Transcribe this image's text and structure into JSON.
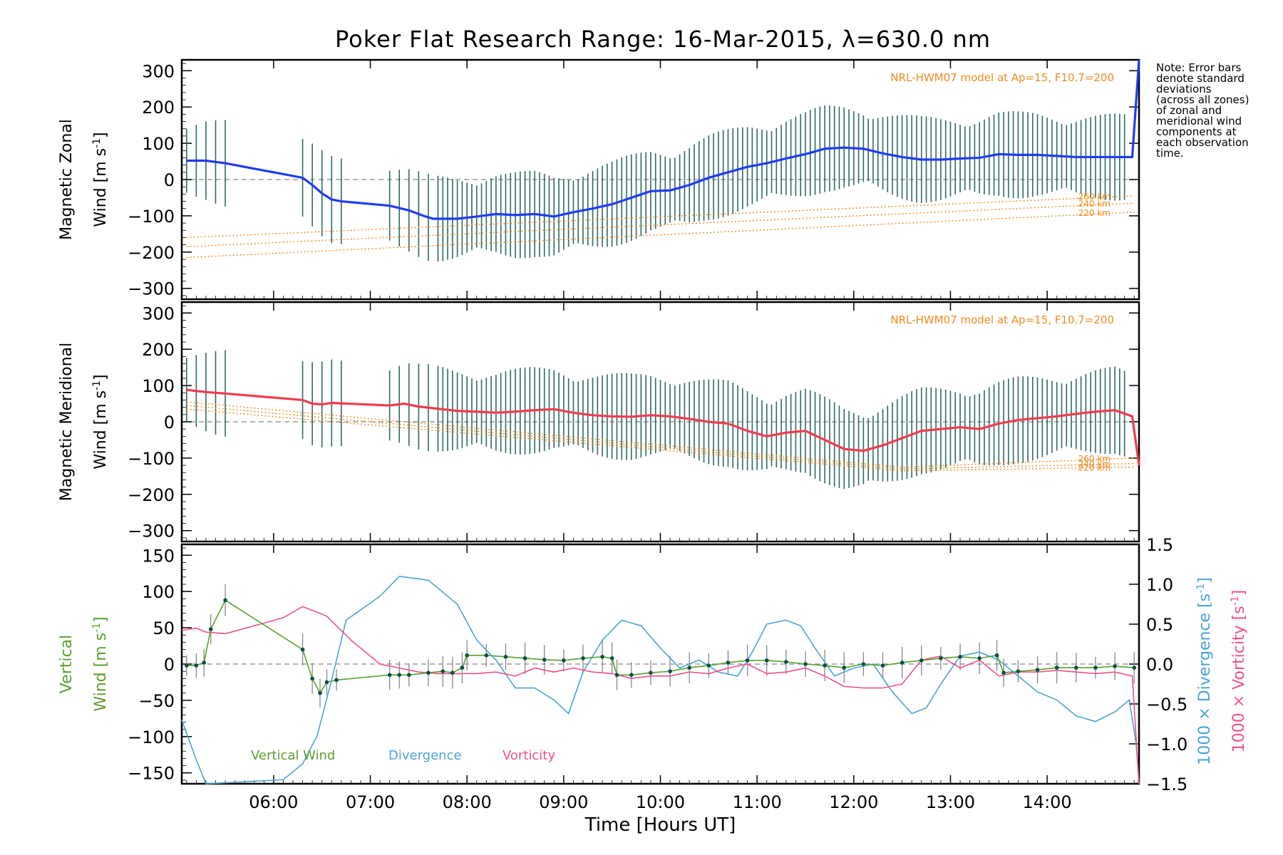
{
  "title": "Poker Flat Research Range: 16-Mar-2015, λ=630.0 nm",
  "note": "Note: Error bars\ndenote standard\ndeviations\n(across all zones)\nof zonal and\nmeridional wind\ncomponents at\neach observation\ntime.",
  "colors": {
    "zonal": "#1f3cf0",
    "meridional": "#f03c50",
    "model": "#f08a1e",
    "vertical": "#5aa02c",
    "divergence": "#4aa3d8",
    "vorticity": "#f0508c",
    "errorbar_dark": "#0b4f4a",
    "errorbar_gray": "#888888"
  },
  "chart_data": [
    {
      "type": "line",
      "panel": "zonal",
      "ylabel": "Magnetic Zonal Wind [m s⁻¹]",
      "ylabel_lines": [
        "Magnetic Zonal",
        "Wind [m s",
        "-1",
        "]"
      ],
      "ylim": [
        -330,
        330
      ],
      "yticks": [
        300,
        200,
        100,
        0,
        -100,
        -200,
        -300
      ],
      "xlim": [
        5.05,
        14.95
      ],
      "model_label": "NRL-HWM07 model at Ap=15, F10.7=200",
      "model_series": [
        {
          "name": "260 km",
          "x": [
            5.1,
            14.9
          ],
          "y": [
            -160,
            -45
          ]
        },
        {
          "name": "240 km",
          "x": [
            5.1,
            14.9
          ],
          "y": [
            -185,
            -65
          ]
        },
        {
          "name": "220 km",
          "x": [
            5.1,
            14.9
          ],
          "y": [
            -215,
            -90
          ]
        }
      ],
      "series": {
        "name": "Zonal wind",
        "x": [
          5.1,
          5.3,
          5.5,
          6.3,
          6.4,
          6.5,
          6.6,
          6.7,
          7.2,
          7.4,
          7.55,
          7.65,
          7.9,
          8.1,
          8.3,
          8.5,
          8.7,
          8.9,
          9.1,
          9.3,
          9.5,
          9.7,
          9.9,
          10.1,
          10.3,
          10.5,
          10.7,
          10.9,
          11.1,
          11.3,
          11.5,
          11.7,
          11.9,
          12.1,
          12.3,
          12.5,
          12.7,
          12.9,
          13.1,
          13.3,
          13.5,
          13.7,
          13.9,
          14.1,
          14.3,
          14.5,
          14.7,
          14.88,
          14.95
        ],
        "y": [
          52,
          52,
          45,
          5,
          -15,
          -38,
          -55,
          -60,
          -72,
          -85,
          -100,
          -108,
          -108,
          -102,
          -95,
          -98,
          -95,
          -102,
          -90,
          -80,
          -68,
          -50,
          -32,
          -30,
          -15,
          5,
          20,
          35,
          45,
          58,
          70,
          85,
          88,
          85,
          72,
          62,
          55,
          55,
          58,
          60,
          70,
          68,
          68,
          65,
          62,
          62,
          62,
          62,
          330
        ]
      }
    },
    {
      "type": "line",
      "panel": "meridional",
      "ylabel": "Magnetic Meridional Wind [m s⁻¹]",
      "ylabel_lines": [
        "Magnetic Meridional",
        "Wind [m s",
        "-1",
        "]"
      ],
      "ylim": [
        -330,
        330
      ],
      "yticks": [
        300,
        200,
        100,
        0,
        -100,
        -200,
        -300
      ],
      "xlim": [
        5.05,
        14.95
      ],
      "model_label": "NRL-HWM07 model at Ap=15, F10.7=200",
      "model_series": [
        {
          "name": "260 km",
          "x": [
            5.1,
            12.5,
            14.9
          ],
          "y": [
            55,
            -125,
            -100
          ]
        },
        {
          "name": "240 km",
          "x": [
            5.1,
            12.5,
            14.9
          ],
          "y": [
            45,
            -130,
            -115
          ]
        },
        {
          "name": "220 km",
          "x": [
            5.1,
            12.5,
            14.9
          ],
          "y": [
            35,
            -135,
            -125
          ]
        }
      ],
      "series": {
        "name": "Meridional wind",
        "x": [
          5.1,
          5.3,
          5.5,
          6.3,
          6.4,
          6.5,
          6.6,
          7.2,
          7.35,
          7.5,
          7.9,
          8.1,
          8.3,
          8.5,
          8.7,
          8.9,
          9.1,
          9.3,
          9.5,
          9.7,
          9.9,
          10.1,
          10.3,
          10.5,
          10.7,
          10.9,
          11.1,
          11.3,
          11.5,
          11.7,
          11.9,
          12.1,
          12.3,
          12.5,
          12.7,
          12.9,
          13.1,
          13.3,
          13.5,
          13.7,
          13.9,
          14.1,
          14.3,
          14.5,
          14.7,
          14.88,
          14.95
        ],
        "y": [
          88,
          82,
          78,
          60,
          50,
          48,
          52,
          45,
          50,
          42,
          30,
          28,
          25,
          28,
          32,
          35,
          25,
          18,
          15,
          14,
          18,
          15,
          8,
          0,
          -5,
          -25,
          -40,
          -30,
          -25,
          -50,
          -75,
          -80,
          -65,
          -45,
          -25,
          -20,
          -15,
          -20,
          -5,
          5,
          10,
          15,
          22,
          28,
          32,
          15,
          -120
        ]
      }
    },
    {
      "type": "line",
      "panel": "vertical",
      "ylabel": "Vertical Wind [m s⁻¹]",
      "ylabel_lines": [
        "Vertical",
        "Wind [m s",
        "-1",
        "]"
      ],
      "ylim": [
        -165,
        165
      ],
      "yticks": [
        150,
        100,
        50,
        0,
        -50,
        -100,
        -150
      ],
      "y2_label": "1000 × Divergence [s⁻¹]",
      "y2_label_lines": [
        "1000 × Divergence [s",
        "-1",
        "]"
      ],
      "y3_label": "1000 × Vorticity [s⁻¹]",
      "y3_label_lines": [
        "1000 × Vorticity [s",
        "-1",
        "]"
      ],
      "y2lim": [
        -1.5,
        1.5
      ],
      "y2ticks": [
        "1.5",
        "1.0",
        "0.5",
        "0.0",
        "−0.5",
        "−1.0",
        "−1.5"
      ],
      "y2tick_values": [
        1.5,
        1.0,
        0.5,
        0.0,
        -0.5,
        -1.0,
        -1.5
      ],
      "xlim": [
        5.05,
        14.95
      ],
      "xticks": [
        "06:00",
        "07:00",
        "08:00",
        "09:00",
        "10:00",
        "11:00",
        "12:00",
        "13:00",
        "14:00"
      ],
      "xtick_values": [
        6,
        7,
        8,
        9,
        10,
        11,
        12,
        13,
        14
      ],
      "xlabel": "Time [Hours UT]",
      "legend": [
        "Vertical Wind",
        "Divergence",
        "Vorticity"
      ],
      "series": [
        {
          "name": "Vertical Wind",
          "x": [
            5.1,
            5.2,
            5.28,
            5.35,
            5.5,
            6.3,
            6.4,
            6.48,
            6.55,
            6.65,
            7.2,
            7.3,
            7.4,
            7.6,
            7.75,
            7.85,
            7.95,
            8.0,
            8.2,
            8.4,
            8.6,
            8.8,
            9.0,
            9.2,
            9.4,
            9.5,
            9.55,
            9.7,
            9.9,
            10.1,
            10.3,
            10.5,
            10.7,
            10.9,
            11.1,
            11.3,
            11.5,
            11.7,
            11.9,
            12.1,
            12.3,
            12.5,
            12.7,
            12.9,
            13.1,
            13.3,
            13.48,
            13.55,
            13.7,
            13.9,
            14.1,
            14.3,
            14.5,
            14.7,
            14.9
          ],
          "y": [
            -2,
            -2,
            2,
            48,
            88,
            20,
            -20,
            -40,
            -25,
            -22,
            -15,
            -15,
            -15,
            -12,
            -10,
            -12,
            -5,
            12,
            12,
            10,
            8,
            6,
            5,
            8,
            10,
            8,
            -15,
            -15,
            -12,
            -10,
            -5,
            -2,
            2,
            5,
            5,
            3,
            0,
            -2,
            -5,
            0,
            -2,
            2,
            5,
            8,
            10,
            8,
            12,
            -12,
            -10,
            -8,
            -5,
            -5,
            -5,
            -3,
            -5
          ]
        },
        {
          "name": "Divergence",
          "x": [
            5.05,
            5.2,
            5.3,
            6.1,
            6.3,
            6.45,
            6.6,
            6.75,
            7.1,
            7.3,
            7.6,
            7.9,
            8.1,
            8.3,
            8.5,
            8.7,
            8.9,
            9.05,
            9.2,
            9.4,
            9.6,
            9.8,
            10.0,
            10.2,
            10.4,
            10.6,
            10.8,
            10.95,
            11.1,
            11.3,
            11.45,
            11.6,
            11.8,
            12.0,
            12.2,
            12.4,
            12.6,
            12.75,
            12.9,
            13.1,
            13.3,
            13.5,
            13.7,
            13.9,
            14.1,
            14.3,
            14.5,
            14.7,
            14.85,
            14.92,
            14.95
          ],
          "y": [
            -0.7,
            -1.2,
            -1.5,
            -1.45,
            -1.25,
            -0.9,
            -0.2,
            0.55,
            0.85,
            1.1,
            1.05,
            0.75,
            0.3,
            0.05,
            -0.3,
            -0.3,
            -0.45,
            -0.62,
            -0.1,
            0.3,
            0.55,
            0.48,
            0.2,
            -0.05,
            0.05,
            -0.1,
            -0.15,
            0.15,
            0.5,
            0.55,
            0.48,
            0.2,
            -0.15,
            -0.05,
            0.0,
            -0.35,
            -0.62,
            -0.55,
            -0.25,
            0.1,
            0.15,
            0.05,
            -0.15,
            -0.35,
            -0.45,
            -0.65,
            -0.72,
            -0.6,
            -0.45,
            -1.0,
            -1.5
          ]
        },
        {
          "name": "Vorticity",
          "x": [
            5.05,
            5.2,
            5.3,
            5.5,
            5.8,
            6.1,
            6.3,
            6.45,
            6.55,
            6.8,
            7.1,
            7.3,
            7.5,
            7.7,
            7.9,
            8.1,
            8.3,
            8.5,
            8.7,
            8.9,
            9.1,
            9.3,
            9.5,
            9.7,
            9.9,
            10.1,
            10.3,
            10.5,
            10.7,
            10.9,
            11.1,
            11.3,
            11.5,
            11.7,
            11.9,
            12.1,
            12.3,
            12.5,
            12.7,
            12.9,
            13.1,
            13.3,
            13.5,
            13.7,
            13.9,
            14.1,
            14.3,
            14.5,
            14.7,
            14.88,
            14.95
          ],
          "y": [
            0.42,
            0.45,
            0.4,
            0.38,
            0.48,
            0.58,
            0.72,
            0.65,
            0.6,
            0.3,
            0.0,
            -0.05,
            -0.1,
            -0.12,
            -0.12,
            -0.12,
            -0.1,
            -0.15,
            -0.05,
            -0.1,
            -0.05,
            -0.1,
            -0.12,
            -0.18,
            -0.15,
            -0.15,
            -0.1,
            -0.12,
            -0.05,
            0.0,
            -0.12,
            -0.1,
            -0.05,
            -0.15,
            -0.28,
            -0.3,
            -0.3,
            -0.25,
            0.05,
            0.1,
            -0.05,
            0.05,
            -0.15,
            -0.1,
            -0.1,
            -0.08,
            -0.1,
            -0.12,
            -0.1,
            -0.15,
            -1.5
          ]
        }
      ]
    }
  ]
}
